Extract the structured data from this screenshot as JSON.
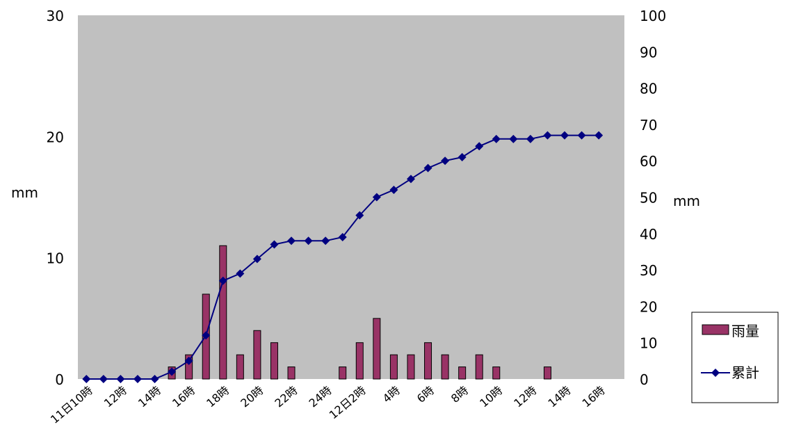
{
  "chart_data": {
    "type": "bar+line",
    "x": [
      "11日10時",
      "",
      "12時",
      "",
      "14時",
      "",
      "16時",
      "",
      "18時",
      "",
      "20時",
      "",
      "22時",
      "",
      "24時",
      "",
      "12日2時",
      "",
      "4時",
      "",
      "6時",
      "",
      "8時",
      "",
      "10時",
      "",
      "12時",
      "",
      "14時",
      "",
      "16時"
    ],
    "series": [
      {
        "name": "雨量",
        "type": "bar",
        "axis": "left",
        "color": "#993366",
        "values": [
          0,
          0,
          0,
          0,
          0,
          1,
          2,
          7,
          11,
          2,
          4,
          3,
          1,
          0,
          0,
          1,
          3,
          5,
          2,
          2,
          3,
          2,
          1,
          2,
          1,
          0,
          0,
          1,
          0,
          0,
          0
        ]
      },
      {
        "name": "累計",
        "type": "line",
        "axis": "right",
        "color": "#000080",
        "values": [
          0,
          0,
          0,
          0,
          0,
          2,
          5,
          12,
          27,
          29,
          33,
          37,
          38,
          38,
          38,
          39,
          45,
          50,
          52,
          55,
          58,
          60,
          61,
          64,
          66,
          66,
          66,
          67,
          67,
          67,
          67
        ]
      }
    ],
    "y_left": {
      "label": "mm",
      "ylim": [
        0,
        30
      ],
      "ticks": [
        "0",
        "10",
        "20",
        "30"
      ]
    },
    "y_right": {
      "label": "mm",
      "ylim": [
        0,
        100
      ],
      "ticks": [
        "0",
        "10",
        "20",
        "30",
        "40",
        "50",
        "60",
        "70",
        "80",
        "90",
        "100"
      ]
    },
    "plot_background": "#c0c0c0",
    "grid": false,
    "legend_position": "right"
  }
}
